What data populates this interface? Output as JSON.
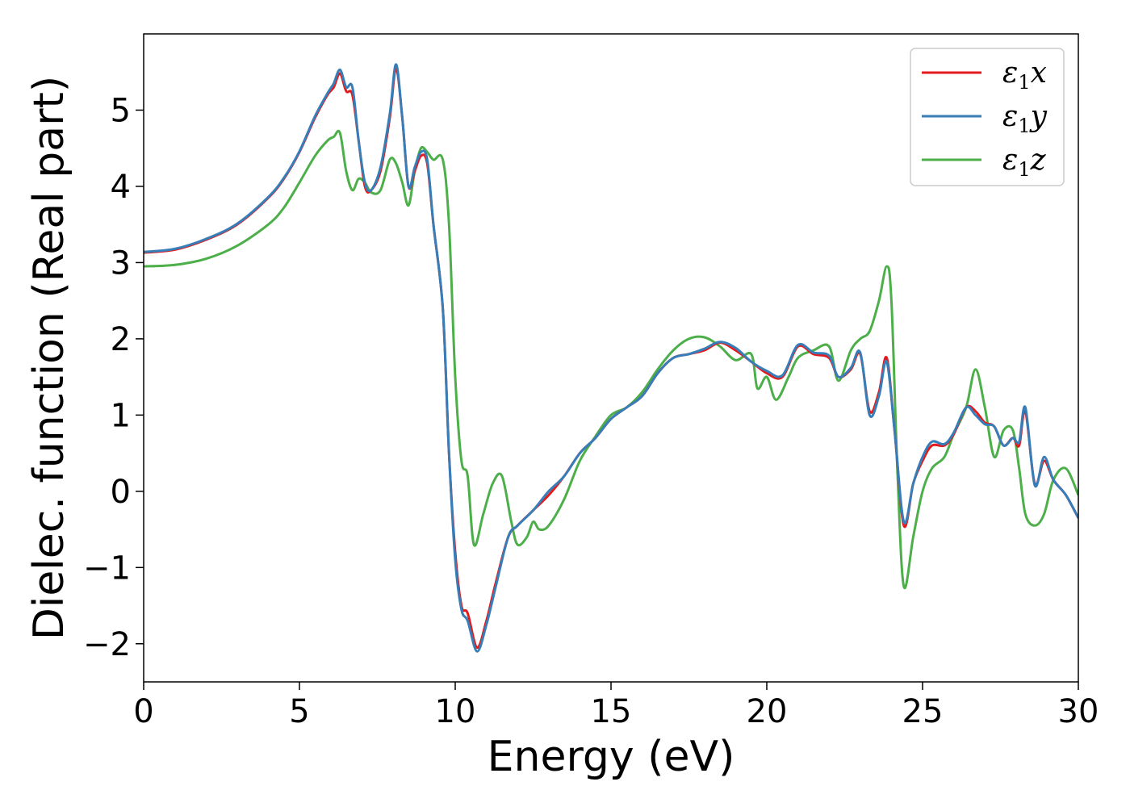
{
  "chart_data": {
    "type": "line",
    "xlabel": "Energy (eV)",
    "ylabel": "Dielec. function (Real part)",
    "xlim": [
      0,
      30
    ],
    "ylim": [
      -2.5,
      6.0
    ],
    "xticks": [
      0,
      5,
      10,
      15,
      20,
      25,
      30
    ],
    "xtick_labels": [
      "0",
      "5",
      "10",
      "15",
      "20",
      "25",
      "30"
    ],
    "yticks": [
      -2,
      -1,
      0,
      1,
      2,
      3,
      4,
      5
    ],
    "ytick_labels": [
      "−2",
      "−1",
      "0",
      "1",
      "2",
      "3",
      "4",
      "5"
    ],
    "grid": false,
    "legend_position": "top-right",
    "series": [
      {
        "name": "ε1x",
        "name_base": "ε",
        "name_sub": "1",
        "name_suffix": "x",
        "color": "#e41a1c",
        "points": [
          [
            0,
            3.13
          ],
          [
            1,
            3.17
          ],
          [
            2,
            3.3
          ],
          [
            3,
            3.5
          ],
          [
            4,
            3.85
          ],
          [
            4.5,
            4.1
          ],
          [
            5,
            4.45
          ],
          [
            5.5,
            4.9
          ],
          [
            5.9,
            5.2
          ],
          [
            6.1,
            5.3
          ],
          [
            6.3,
            5.48
          ],
          [
            6.5,
            5.25
          ],
          [
            6.7,
            5.2
          ],
          [
            6.9,
            4.6
          ],
          [
            7.1,
            4.0
          ],
          [
            7.3,
            3.95
          ],
          [
            7.6,
            4.2
          ],
          [
            7.9,
            4.9
          ],
          [
            8.1,
            5.55
          ],
          [
            8.3,
            4.9
          ],
          [
            8.5,
            4.0
          ],
          [
            8.7,
            4.2
          ],
          [
            8.9,
            4.4
          ],
          [
            9.1,
            4.3
          ],
          [
            9.3,
            3.5
          ],
          [
            9.6,
            2.4
          ],
          [
            9.8,
            0.5
          ],
          [
            10,
            -0.8
          ],
          [
            10.2,
            -1.5
          ],
          [
            10.4,
            -1.6
          ],
          [
            10.7,
            -2.05
          ],
          [
            11,
            -1.7
          ],
          [
            11.3,
            -1.2
          ],
          [
            11.7,
            -0.6
          ],
          [
            12,
            -0.45
          ],
          [
            12.5,
            -0.25
          ],
          [
            13,
            -0.05
          ],
          [
            13.5,
            0.2
          ],
          [
            14,
            0.5
          ],
          [
            14.5,
            0.7
          ],
          [
            15,
            0.95
          ],
          [
            15.5,
            1.1
          ],
          [
            16,
            1.25
          ],
          [
            16.5,
            1.55
          ],
          [
            17,
            1.75
          ],
          [
            17.5,
            1.8
          ],
          [
            18,
            1.85
          ],
          [
            18.5,
            1.95
          ],
          [
            19,
            1.85
          ],
          [
            19.5,
            1.7
          ],
          [
            20,
            1.55
          ],
          [
            20.5,
            1.5
          ],
          [
            21,
            1.9
          ],
          [
            21.5,
            1.8
          ],
          [
            22,
            1.75
          ],
          [
            22.3,
            1.5
          ],
          [
            22.7,
            1.6
          ],
          [
            23,
            1.8
          ],
          [
            23.3,
            1.05
          ],
          [
            23.6,
            1.3
          ],
          [
            23.85,
            1.75
          ],
          [
            24.1,
            0.8
          ],
          [
            24.4,
            -0.45
          ],
          [
            24.7,
            0.1
          ],
          [
            25,
            0.4
          ],
          [
            25.3,
            0.6
          ],
          [
            25.7,
            0.6
          ],
          [
            26,
            0.75
          ],
          [
            26.4,
            1.1
          ],
          [
            26.7,
            1.05
          ],
          [
            27,
            0.9
          ],
          [
            27.3,
            0.85
          ],
          [
            27.6,
            0.6
          ],
          [
            27.9,
            0.7
          ],
          [
            28.1,
            0.6
          ],
          [
            28.3,
            1.05
          ],
          [
            28.6,
            0.1
          ],
          [
            28.9,
            0.4
          ],
          [
            29.2,
            0.15
          ],
          [
            29.6,
            -0.05
          ],
          [
            30,
            -0.35
          ]
        ]
      },
      {
        "name": "ε1y",
        "name_base": "ε",
        "name_sub": "1",
        "name_suffix": "y",
        "color": "#377eb8",
        "points": [
          [
            0,
            3.14
          ],
          [
            1,
            3.18
          ],
          [
            2,
            3.31
          ],
          [
            3,
            3.51
          ],
          [
            4,
            3.86
          ],
          [
            4.5,
            4.11
          ],
          [
            5,
            4.46
          ],
          [
            5.5,
            4.92
          ],
          [
            5.9,
            5.22
          ],
          [
            6.1,
            5.35
          ],
          [
            6.3,
            5.53
          ],
          [
            6.5,
            5.3
          ],
          [
            6.7,
            5.3
          ],
          [
            6.9,
            4.6
          ],
          [
            7.1,
            4.05
          ],
          [
            7.3,
            3.95
          ],
          [
            7.6,
            4.25
          ],
          [
            7.9,
            4.95
          ],
          [
            8.1,
            5.6
          ],
          [
            8.3,
            4.9
          ],
          [
            8.5,
            4.0
          ],
          [
            8.7,
            4.25
          ],
          [
            8.9,
            4.45
          ],
          [
            9.1,
            4.35
          ],
          [
            9.3,
            3.5
          ],
          [
            9.6,
            2.4
          ],
          [
            9.8,
            0.5
          ],
          [
            10,
            -0.9
          ],
          [
            10.2,
            -1.55
          ],
          [
            10.4,
            -1.7
          ],
          [
            10.7,
            -2.1
          ],
          [
            11,
            -1.75
          ],
          [
            11.3,
            -1.25
          ],
          [
            11.7,
            -0.6
          ],
          [
            12,
            -0.45
          ],
          [
            12.5,
            -0.25
          ],
          [
            13,
            0.0
          ],
          [
            13.5,
            0.2
          ],
          [
            14,
            0.5
          ],
          [
            14.5,
            0.7
          ],
          [
            15,
            0.95
          ],
          [
            15.5,
            1.1
          ],
          [
            16,
            1.25
          ],
          [
            16.5,
            1.55
          ],
          [
            17,
            1.75
          ],
          [
            17.5,
            1.8
          ],
          [
            18,
            1.87
          ],
          [
            18.5,
            1.96
          ],
          [
            19,
            1.88
          ],
          [
            19.5,
            1.7
          ],
          [
            20,
            1.58
          ],
          [
            20.5,
            1.52
          ],
          [
            21,
            1.92
          ],
          [
            21.5,
            1.82
          ],
          [
            22,
            1.78
          ],
          [
            22.3,
            1.5
          ],
          [
            22.7,
            1.62
          ],
          [
            23,
            1.82
          ],
          [
            23.3,
            1.0
          ],
          [
            23.6,
            1.25
          ],
          [
            23.85,
            1.7
          ],
          [
            24.1,
            0.8
          ],
          [
            24.4,
            -0.4
          ],
          [
            24.7,
            0.1
          ],
          [
            25,
            0.45
          ],
          [
            25.3,
            0.65
          ],
          [
            25.7,
            0.62
          ],
          [
            26,
            0.77
          ],
          [
            26.4,
            1.1
          ],
          [
            26.7,
            1.0
          ],
          [
            27,
            0.88
          ],
          [
            27.3,
            0.85
          ],
          [
            27.6,
            0.6
          ],
          [
            27.9,
            0.7
          ],
          [
            28.1,
            0.65
          ],
          [
            28.3,
            1.1
          ],
          [
            28.6,
            0.08
          ],
          [
            28.9,
            0.45
          ],
          [
            29.2,
            0.15
          ],
          [
            29.6,
            -0.05
          ],
          [
            30,
            -0.35
          ]
        ]
      },
      {
        "name": "ε1z",
        "name_base": "ε",
        "name_sub": "1",
        "name_suffix": "z",
        "color": "#4daf4a",
        "points": [
          [
            0,
            2.95
          ],
          [
            1,
            2.97
          ],
          [
            2,
            3.05
          ],
          [
            3,
            3.22
          ],
          [
            4,
            3.5
          ],
          [
            4.5,
            3.72
          ],
          [
            5,
            4.05
          ],
          [
            5.5,
            4.4
          ],
          [
            5.9,
            4.6
          ],
          [
            6.1,
            4.65
          ],
          [
            6.3,
            4.7
          ],
          [
            6.5,
            4.2
          ],
          [
            6.7,
            3.95
          ],
          [
            6.9,
            4.1
          ],
          [
            7.1,
            4.05
          ],
          [
            7.3,
            3.92
          ],
          [
            7.6,
            3.95
          ],
          [
            7.9,
            4.35
          ],
          [
            8.1,
            4.3
          ],
          [
            8.3,
            4.05
          ],
          [
            8.5,
            3.75
          ],
          [
            8.7,
            4.2
          ],
          [
            8.9,
            4.5
          ],
          [
            9.1,
            4.45
          ],
          [
            9.3,
            4.35
          ],
          [
            9.6,
            4.35
          ],
          [
            9.8,
            3.5
          ],
          [
            10,
            1.5
          ],
          [
            10.2,
            0.4
          ],
          [
            10.4,
            0.2
          ],
          [
            10.6,
            -0.7
          ],
          [
            10.9,
            -0.3
          ],
          [
            11.2,
            0.1
          ],
          [
            11.5,
            0.2
          ],
          [
            11.8,
            -0.4
          ],
          [
            12,
            -0.7
          ],
          [
            12.3,
            -0.6
          ],
          [
            12.5,
            -0.4
          ],
          [
            12.7,
            -0.5
          ],
          [
            13,
            -0.45
          ],
          [
            13.5,
            -0.1
          ],
          [
            14,
            0.4
          ],
          [
            14.5,
            0.72
          ],
          [
            15,
            1.0
          ],
          [
            15.5,
            1.1
          ],
          [
            16,
            1.3
          ],
          [
            16.5,
            1.6
          ],
          [
            17,
            1.85
          ],
          [
            17.5,
            2.0
          ],
          [
            18,
            2.02
          ],
          [
            18.5,
            1.9
          ],
          [
            19,
            1.72
          ],
          [
            19.5,
            1.8
          ],
          [
            19.7,
            1.35
          ],
          [
            20,
            1.5
          ],
          [
            20.3,
            1.2
          ],
          [
            20.7,
            1.5
          ],
          [
            21,
            1.75
          ],
          [
            21.5,
            1.85
          ],
          [
            22,
            1.9
          ],
          [
            22.3,
            1.45
          ],
          [
            22.7,
            1.85
          ],
          [
            23,
            2.0
          ],
          [
            23.3,
            2.1
          ],
          [
            23.6,
            2.5
          ],
          [
            23.85,
            2.95
          ],
          [
            24,
            2.5
          ],
          [
            24.2,
            0.2
          ],
          [
            24.4,
            -1.25
          ],
          [
            24.7,
            -0.6
          ],
          [
            25,
            0.0
          ],
          [
            25.3,
            0.3
          ],
          [
            25.7,
            0.45
          ],
          [
            26,
            0.75
          ],
          [
            26.4,
            1.1
          ],
          [
            26.7,
            1.6
          ],
          [
            27,
            1.1
          ],
          [
            27.3,
            0.45
          ],
          [
            27.6,
            0.8
          ],
          [
            27.9,
            0.8
          ],
          [
            28.1,
            0.3
          ],
          [
            28.3,
            -0.3
          ],
          [
            28.6,
            -0.45
          ],
          [
            28.9,
            -0.3
          ],
          [
            29.2,
            0.15
          ],
          [
            29.6,
            0.3
          ],
          [
            30,
            -0.05
          ]
        ]
      }
    ]
  }
}
